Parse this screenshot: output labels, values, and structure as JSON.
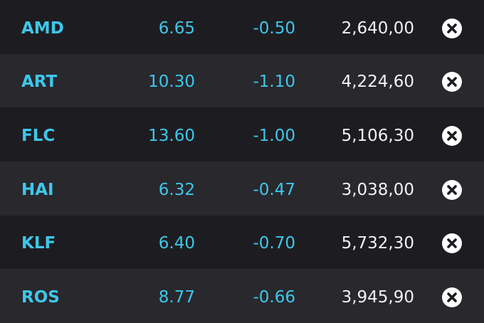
{
  "table": {
    "rows": [
      [
        "AMD",
        "6.65",
        "-0.50",
        "2,640,00"
      ],
      [
        "ART",
        "10.30",
        "-1.10",
        "4,224,60"
      ],
      [
        "FLC",
        "13.60",
        "-1.00",
        "5,106,30"
      ],
      [
        "HAI",
        "6.32",
        "-0.47",
        "3,038,00"
      ],
      [
        "KLF",
        "6.40",
        "-0.70",
        "5,732,30"
      ],
      [
        "ROS",
        "8.77",
        "-0.66",
        "3,945,90"
      ]
    ]
  }
}
